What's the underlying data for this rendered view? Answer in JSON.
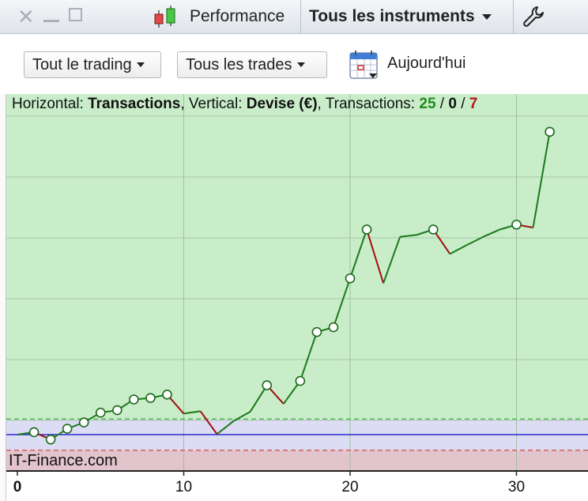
{
  "titlebar": {
    "close_icon": "close-x-icon",
    "performance_label": "Performance",
    "instruments_label": "Tous les instruments",
    "settings_icon": "wrench-icon"
  },
  "toolbar": {
    "trading_filter": "Tout le trading",
    "trades_filter": "Tous les trades",
    "date_filter": "Aujourd'hui"
  },
  "summary": {
    "h_label": "Horizontal: ",
    "h_value": "Transactions",
    "v_label": ", Vertical: ",
    "v_value": "Devise (€)",
    "t_label": ", Transactions: ",
    "wins": "25",
    "sep1": " / ",
    "even": "0",
    "sep2": " / ",
    "losses": "7"
  },
  "brand": "IT-Finance.com",
  "colors": {
    "profit_zone": "#c9ecc9",
    "loss_zone": "#e2c4cc",
    "neutral_zone": "#dcdcf4",
    "up_line": "#1a7a1a",
    "down_line": "#a01010",
    "baseline": "#2a2ad0"
  },
  "chart_data": {
    "type": "line",
    "xlim": [
      0,
      33
    ],
    "x_ticks": [
      "0",
      "10",
      "20",
      "30"
    ],
    "y_scale": "relative, no printed values",
    "values": [
      0,
      0.5,
      -1.0,
      1.2,
      2.5,
      4.5,
      5.0,
      7.2,
      7.5,
      8.2,
      4.3,
      4.8,
      0.1,
      2.8,
      4.7,
      10.1,
      6.3,
      11.0,
      21.0,
      22.0,
      32.0,
      42.0,
      31.0,
      40.5,
      40.9,
      42.0,
      37.0,
      38.8,
      40.5,
      42.0,
      43.0,
      42.4,
      62.0
    ],
    "markers": [
      1,
      2,
      3,
      4,
      5,
      6,
      7,
      8,
      9,
      15,
      17,
      18,
      19,
      20,
      21,
      25,
      30,
      32
    ],
    "upper_reference": 3.2,
    "lower_reference": -3.2,
    "grid": true
  }
}
